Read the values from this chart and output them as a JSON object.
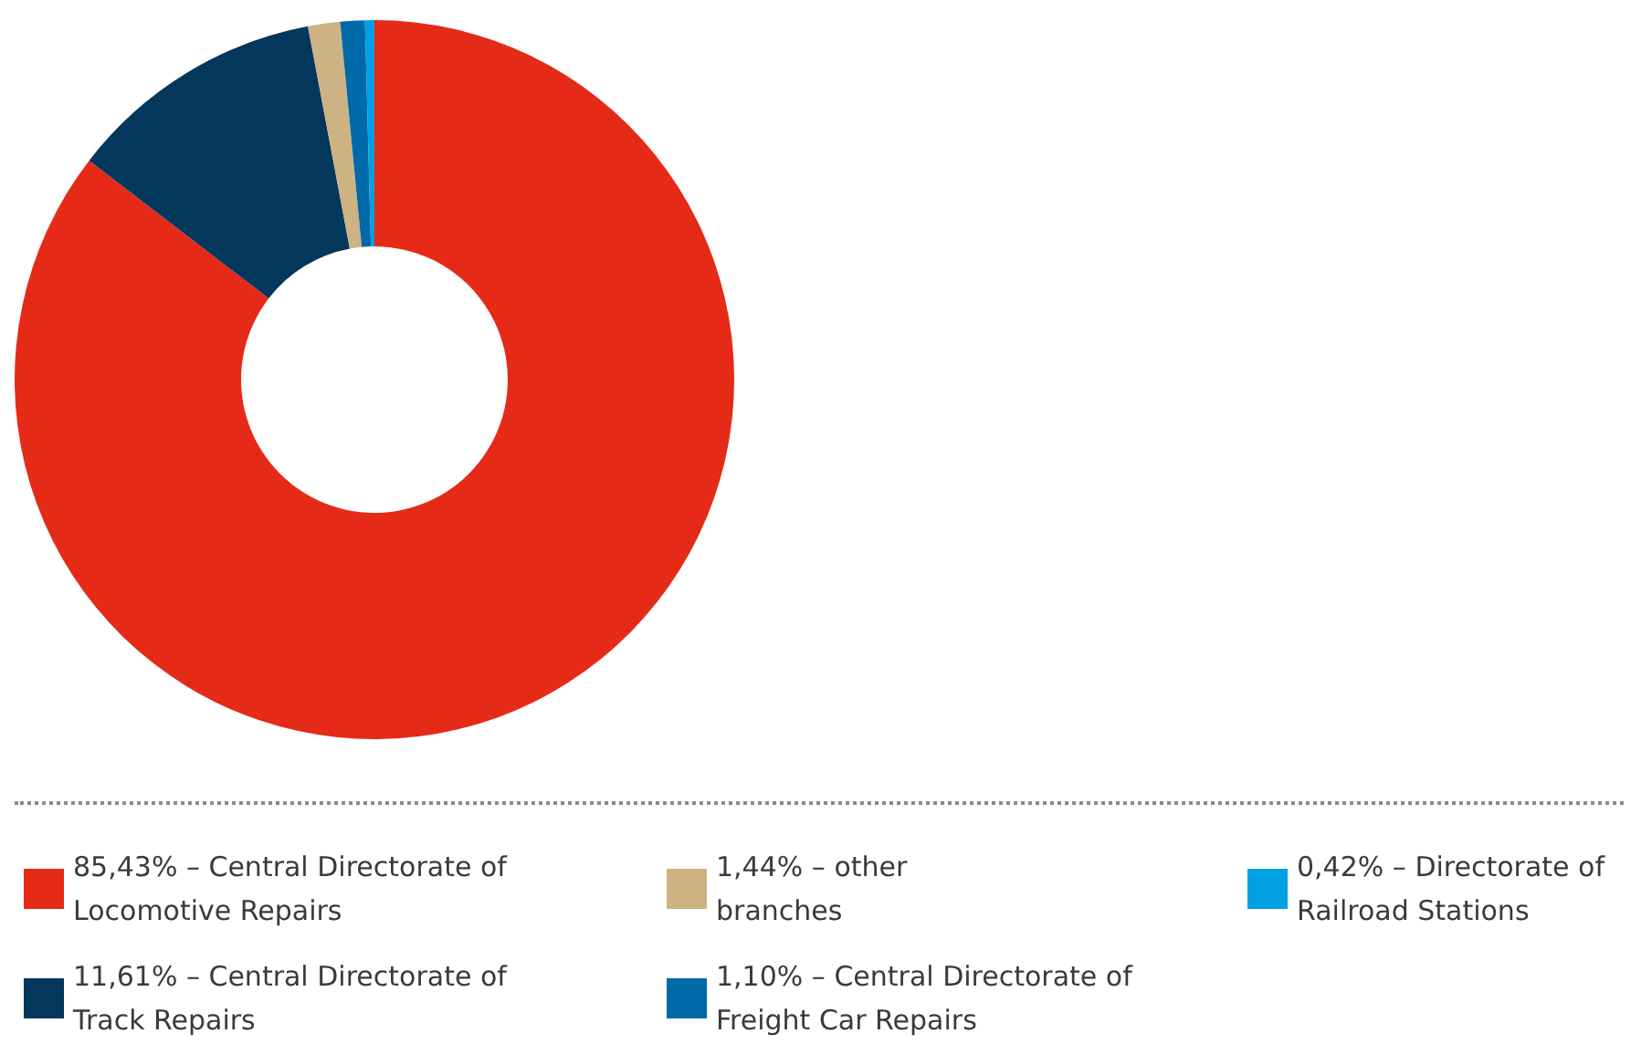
{
  "chart_data": {
    "type": "donut",
    "categories": [
      "85,43% – Central Directorate of Locomotive Repairs",
      "11,61% – Central Directorate of Track Repairs",
      "1,44% – other branches",
      "1,10% – Central Directorate of Freight Car Repairs",
      "0,42% – Directorate of Railroad Stations"
    ],
    "values": [
      85.43,
      11.61,
      1.44,
      1.1,
      0.42
    ],
    "colors": [
      "#e52a18",
      "#04375c",
      "#cdb283",
      "#0069a8",
      "#00a0e2"
    ],
    "legend": "bottom"
  }
}
